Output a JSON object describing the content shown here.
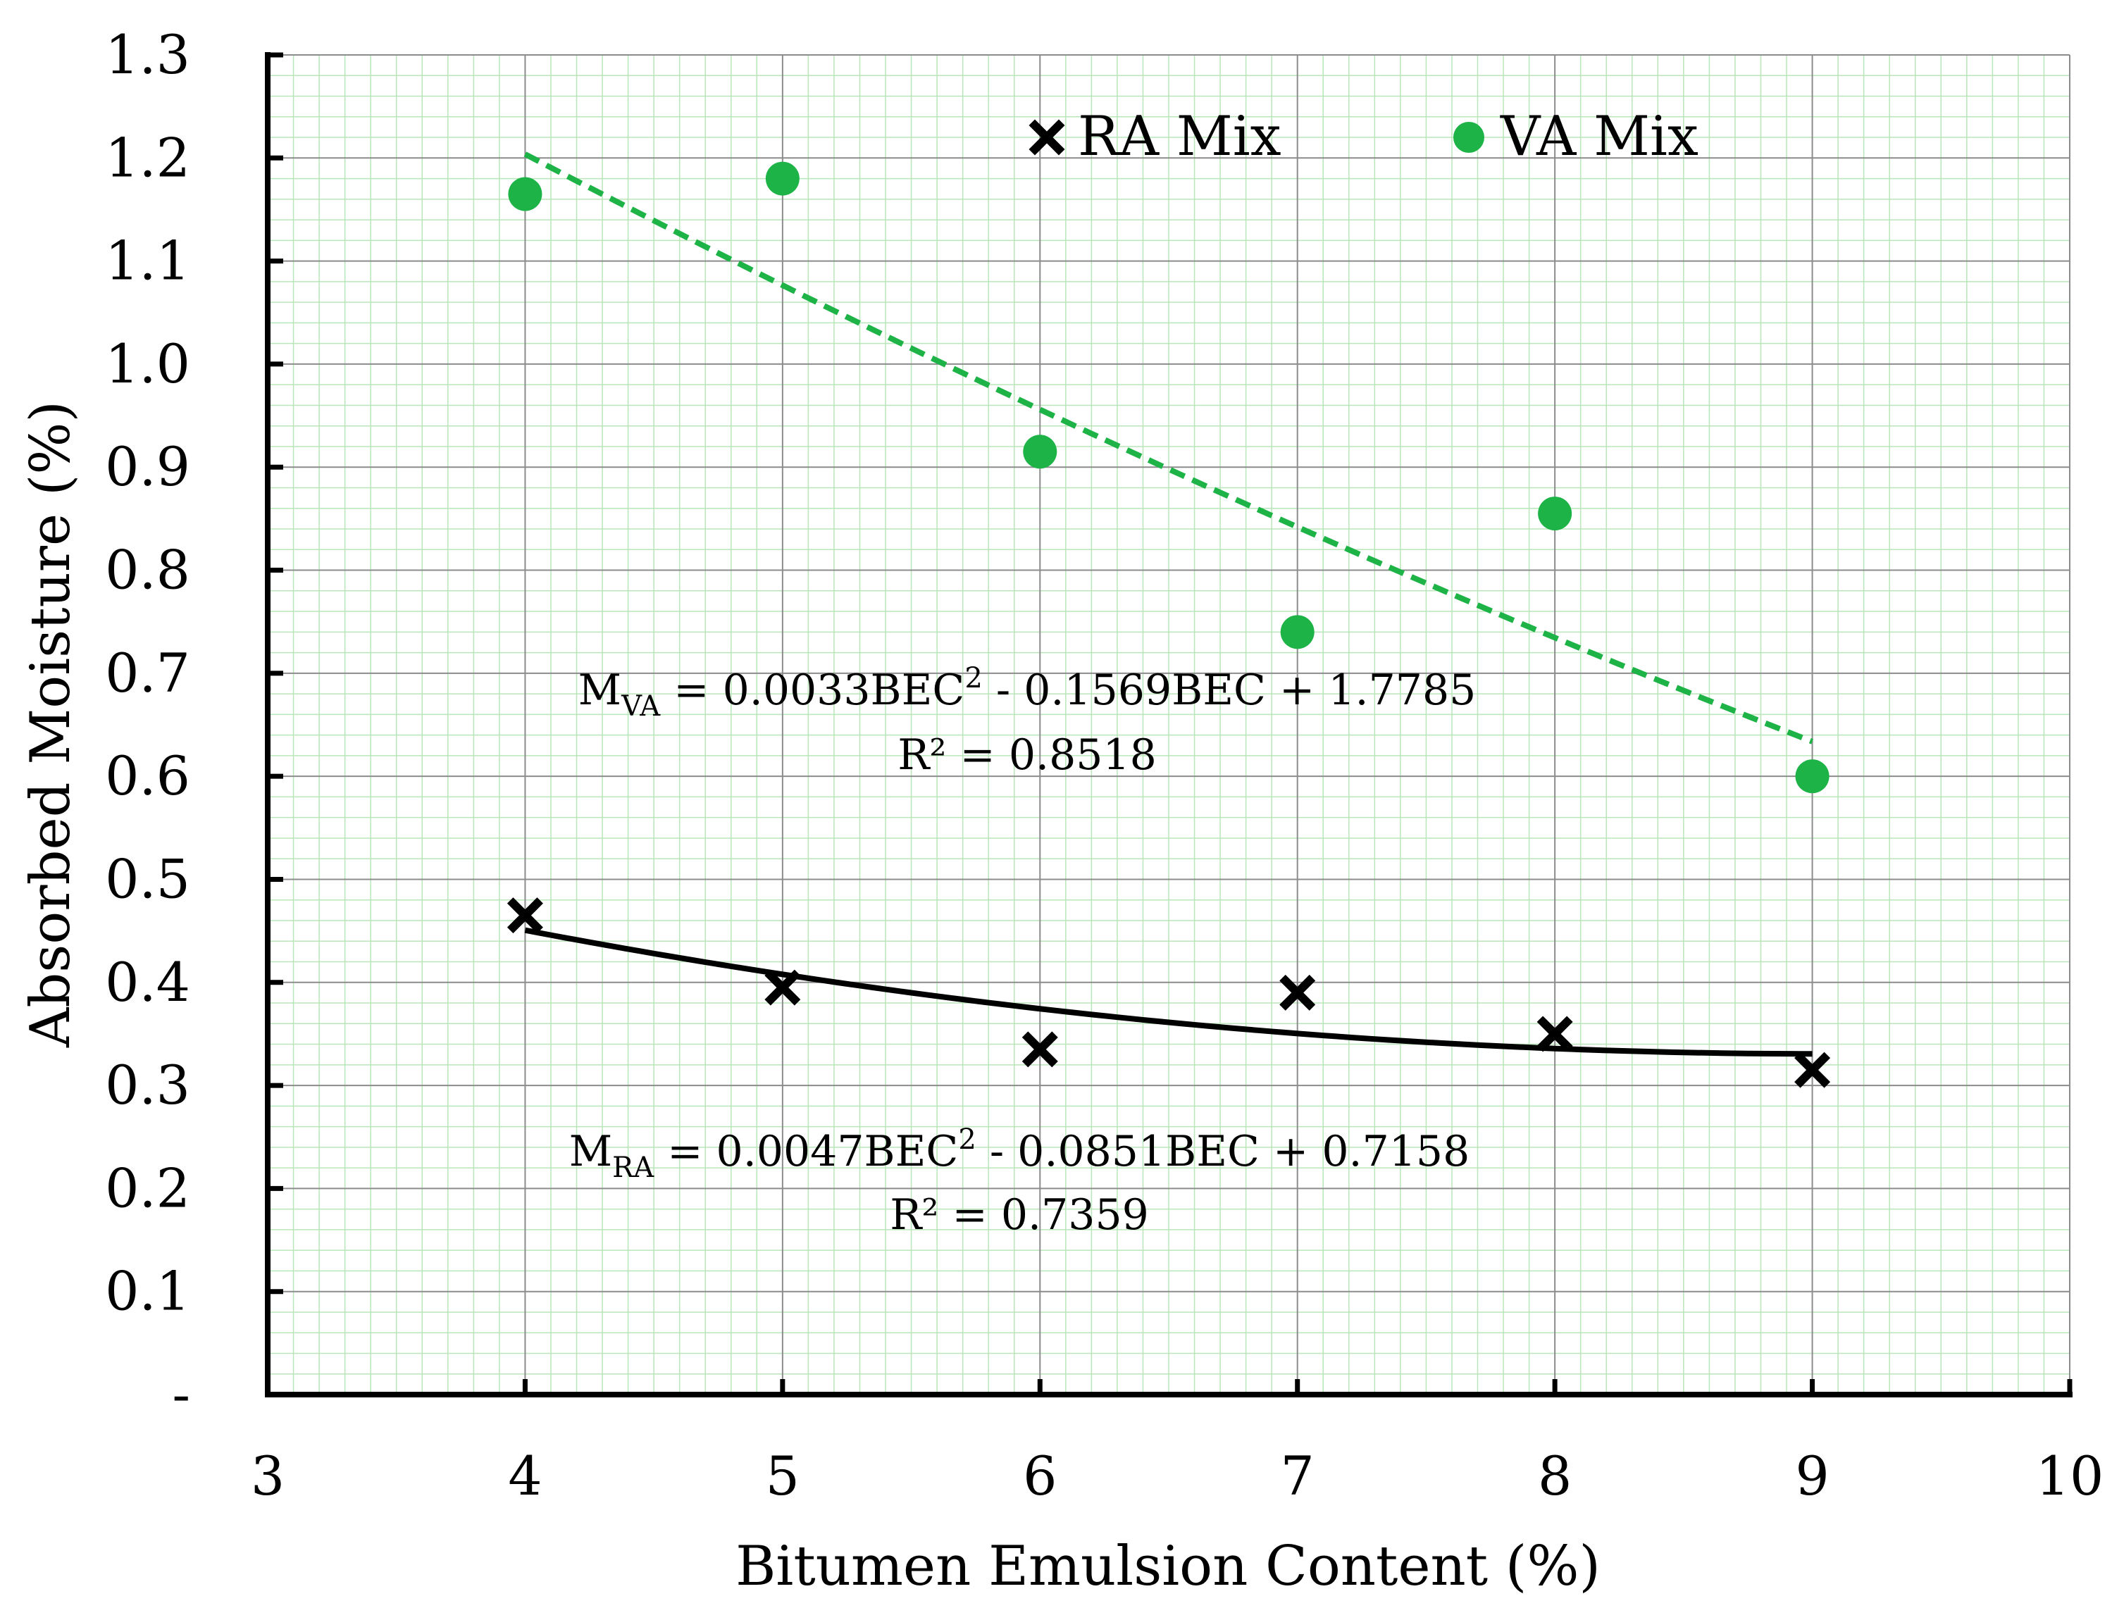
{
  "chart_data": {
    "type": "scatter",
    "xlabel": "Bitumen Emulsion Content (%)",
    "ylabel": "Absorbed Moisture (%)",
    "xlim": [
      3,
      10
    ],
    "ylim": [
      0,
      1.3
    ],
    "x_ticks": [
      "3",
      "4",
      "5",
      "6",
      "7",
      "8",
      "9",
      "10"
    ],
    "y_ticks": [
      "-",
      "0.1",
      "0.2",
      "0.3",
      "0.4",
      "0.5",
      "0.6",
      "0.7",
      "0.8",
      "0.9",
      "1.0",
      "1.1",
      "1.2",
      "1.3"
    ],
    "grid": true,
    "legend_position": "top",
    "colors": {
      "ra": "#000000",
      "va": "#1db347",
      "minor_grid": "#b9e6b9",
      "major_grid": "#8c8c8c"
    },
    "series": [
      {
        "name": "RA Mix",
        "marker": "x-cross",
        "x": [
          4,
          5,
          6,
          7,
          8,
          9
        ],
        "y": [
          0.465,
          0.395,
          0.335,
          0.39,
          0.35,
          0.315
        ],
        "trend": {
          "type": "polynomial",
          "style": "solid",
          "coefficients": [
            0.0047,
            -0.0851,
            0.7158
          ],
          "range": [
            4,
            9
          ]
        },
        "equation": {
          "lhs": "M",
          "subscript": "RA",
          "rhs_a": " = 0.0047BEC",
          "sup": "2",
          "rhs_b": " - 0.0851BEC + 0.7158",
          "r2": "R² = 0.7359"
        }
      },
      {
        "name": "VA Mix",
        "marker": "circle",
        "x": [
          4,
          5,
          6,
          7,
          8,
          9
        ],
        "y": [
          1.165,
          1.18,
          0.915,
          0.74,
          0.855,
          0.6
        ],
        "trend": {
          "type": "polynomial",
          "style": "dashed",
          "coefficients": [
            0.0033,
            -0.1569,
            1.7785
          ],
          "range": [
            4,
            9
          ]
        },
        "equation": {
          "lhs": "M",
          "subscript": "VA",
          "rhs_a": " = 0.0033BEC",
          "sup": "2",
          "rhs_b": " - 0.1569BEC + 1.7785",
          "r2": "R² = 0.8518"
        }
      }
    ]
  }
}
